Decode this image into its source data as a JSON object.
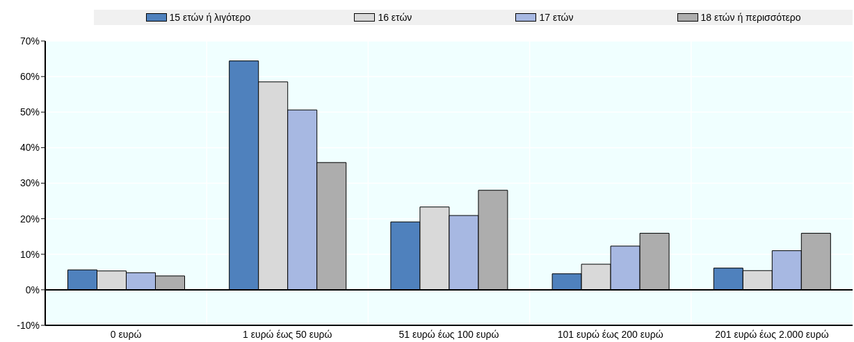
{
  "chart_data": {
    "type": "bar",
    "categories": [
      "0 ευρώ",
      "1 ευρώ έως 50 ευρώ",
      "51 ευρώ έως 100 ευρώ",
      "101 ευρώ έως 200 ευρώ",
      "201 ευρώ έως 2.000 ευρώ"
    ],
    "series": [
      {
        "name": "15 ετών ή λιγότερο",
        "color": "#4f81bd",
        "values": [
          5.6,
          64.4,
          19.1,
          4.5,
          6.1
        ]
      },
      {
        "name": "16 ετών",
        "color": "#d9d9d9",
        "values": [
          5.3,
          58.5,
          23.3,
          7.2,
          5.4
        ]
      },
      {
        "name": "17 ετών",
        "color": "#a7b8e2",
        "values": [
          4.8,
          50.6,
          20.9,
          12.3,
          11.0
        ]
      },
      {
        "name": "18 ετών ή περισσότερο",
        "color": "#adadad",
        "values": [
          3.9,
          35.8,
          28.0,
          15.9,
          15.9
        ]
      }
    ],
    "ylim": [
      -10,
      70
    ],
    "yticks": [
      {
        "value": -10,
        "label": "-10%"
      },
      {
        "value": 0,
        "label": "0%"
      },
      {
        "value": 10,
        "label": "10%"
      },
      {
        "value": 20,
        "label": "20%"
      },
      {
        "value": 30,
        "label": "30%"
      },
      {
        "value": 40,
        "label": "40%"
      },
      {
        "value": 50,
        "label": "50%"
      },
      {
        "value": 60,
        "label": "60%"
      },
      {
        "value": 70,
        "label": "70%"
      }
    ],
    "grid": true,
    "legend": "top"
  }
}
